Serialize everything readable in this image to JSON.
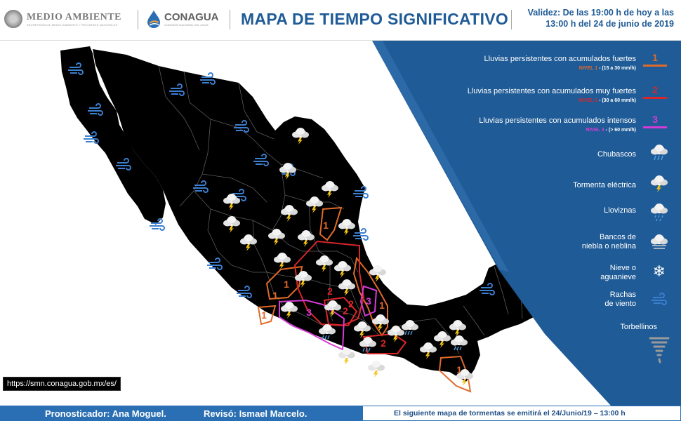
{
  "header": {
    "agency1": "MEDIO AMBIENTE",
    "agency1_sub": "SECRETARÍA DE MEDIO AMBIENTE Y RECURSOS NATURALES",
    "agency2": "CONAGUA",
    "agency2_sub": "COMISIÓN NACIONAL DEL AGUA",
    "title": "MAPA DE TIEMPO SIGNIFICATIVO",
    "validity_line1": "Validez: De las 19:00 h de hoy a las",
    "validity_line2": "13:00 h del 24 de junio de 2019"
  },
  "legend": {
    "items": [
      {
        "label": "Lluvias persistentes con acumulados  fuertes",
        "level": "NIVEL 1",
        "range": "- (15 a 30 mm/h)",
        "code": "1",
        "color": "#e06a2a"
      },
      {
        "label": "Lluvias persistentes con acumulados  muy fuertes",
        "level": "NIVEL 2",
        "range": "- (30 a 60 mm/h)",
        "code": "2",
        "color": "#d9262b"
      },
      {
        "label": "Lluvias persistentes con acumulados  intensos",
        "level": "NIVEL 3",
        "range": "- (> 60 mm/h)",
        "code": "3",
        "color": "#d63bd6"
      },
      {
        "label": "Chubascos"
      },
      {
        "label": "Tormenta eléctrica"
      },
      {
        "label": "Lloviznas"
      },
      {
        "label_line1": "Bancos de",
        "label_line2": "niebla o neblina"
      },
      {
        "label_line1": "Nieve  o",
        "label_line2": "aguanieve"
      },
      {
        "label_line1": "Rachas",
        "label_line2": "de viento"
      },
      {
        "label": "Torbellinos"
      }
    ]
  },
  "map": {
    "zone_labels": [
      "1",
      "1",
      "1",
      "2",
      "2",
      "2",
      "3",
      "3",
      "1",
      "1",
      "1",
      "2"
    ]
  },
  "colors": {
    "map": "#000000",
    "panel": "#1f5b96",
    "brand": "#1f5b96",
    "footer": "#2a6fb3"
  },
  "url": "https://smn.conagua.gob.mx/es/",
  "footer": {
    "forecaster": "Pronosticador: Ana Moguel.",
    "reviewer": "Revisó: Ismael Marcelo.",
    "next_map": "El siguiente mapa de tormentas se emitirá el 24/Junio/19 – 13:00 h"
  }
}
